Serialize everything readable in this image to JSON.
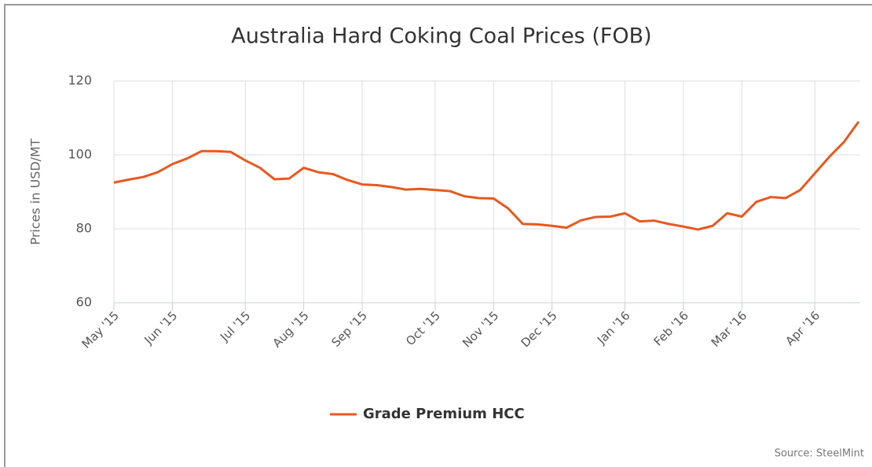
{
  "chart_data": {
    "type": "line",
    "title": "Australia Hard Coking Coal Prices (FOB)",
    "y_label": "Prices in USD/MT",
    "source": "Source: SteelMint",
    "legend": "bottom",
    "grid": true,
    "categories": [
      "May '15",
      null,
      null,
      null,
      "Jun '15",
      null,
      null,
      null,
      null,
      "Jul '15",
      null,
      null,
      null,
      "Aug '15",
      null,
      null,
      null,
      "Sep '15",
      null,
      null,
      null,
      null,
      "Oct '15",
      null,
      null,
      null,
      "Nov '15",
      null,
      null,
      null,
      "Dec '15",
      null,
      null,
      null,
      null,
      "Jan '16",
      null,
      null,
      null,
      "Feb '16",
      null,
      null,
      null,
      "Mar '16",
      null,
      null,
      null,
      null,
      "Apr '16",
      null,
      null,
      null
    ],
    "series": [
      {
        "name": "Grade Premium HCC",
        "color": "#e8581f",
        "values": [
          92.5,
          93.3,
          94,
          95.3,
          97.5,
          99,
          101,
          101,
          100.8,
          98.5,
          96.5,
          93.4,
          93.6,
          96.5,
          95.3,
          94.8,
          93.2,
          92,
          91.8,
          91.3,
          90.6,
          90.8,
          90.5,
          90.2,
          88.8,
          88.3,
          88.2,
          85.5,
          81.3,
          81.2,
          80.8,
          80.3,
          82.3,
          83.2,
          83.3,
          84.2,
          82,
          82.2,
          81.3,
          80.6,
          79.8,
          80.8,
          84.2,
          83.3,
          87.3,
          88.6,
          88.3,
          90.5,
          95,
          99.5,
          103.5,
          109
        ]
      }
    ],
    "ylim": [
      60,
      120
    ],
    "yticks": [
      60,
      80,
      100,
      120
    ]
  }
}
